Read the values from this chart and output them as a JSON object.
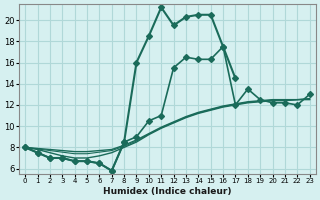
{
  "xlabel": "Humidex (Indice chaleur)",
  "ylabel": "",
  "bg_color": "#d6f0f0",
  "grid_color": "#b0d8d8",
  "line_color": "#1a6b5a",
  "xlim": [
    -0.5,
    23.5
  ],
  "ylim": [
    5.5,
    21.5
  ],
  "xticks": [
    0,
    1,
    2,
    3,
    4,
    5,
    6,
    7,
    8,
    9,
    10,
    11,
    12,
    13,
    14,
    15,
    16,
    17,
    18,
    19,
    20,
    21,
    22,
    23
  ],
  "yticks": [
    6,
    8,
    10,
    12,
    14,
    16,
    18,
    20
  ],
  "flat_series": [
    {
      "x": [
        0,
        1,
        2,
        3,
        4,
        5,
        6,
        7,
        8,
        9,
        10,
        11,
        12,
        13,
        14,
        15,
        16,
        17,
        18,
        19,
        20,
        21,
        22,
        23
      ],
      "y": [
        8.0,
        7.8,
        7.5,
        7.2,
        7.0,
        7.0,
        7.2,
        7.5,
        8.0,
        8.5,
        9.2,
        9.8,
        10.3,
        10.8,
        11.2,
        11.5,
        11.8,
        12.0,
        12.2,
        12.3,
        12.4,
        12.4,
        12.5,
        12.5
      ],
      "marker": false,
      "linewidth": 1.0
    },
    {
      "x": [
        0,
        1,
        2,
        3,
        4,
        5,
        6,
        7,
        8,
        9,
        10,
        11,
        12,
        13,
        14,
        15,
        16,
        17,
        18,
        19,
        20,
        21,
        22,
        23
      ],
      "y": [
        8.0,
        7.9,
        7.8,
        7.7,
        7.6,
        7.6,
        7.7,
        7.8,
        8.2,
        8.7,
        9.3,
        9.9,
        10.4,
        10.9,
        11.3,
        11.6,
        11.9,
        12.1,
        12.3,
        12.4,
        12.5,
        12.5,
        12.5,
        12.6
      ],
      "marker": false,
      "linewidth": 1.0
    },
    {
      "x": [
        0,
        1,
        2,
        3,
        4,
        5,
        6,
        7,
        8,
        9,
        10,
        11,
        12,
        13,
        14,
        15,
        16,
        17,
        18,
        19,
        20,
        21,
        22,
        23
      ],
      "y": [
        8.0,
        7.85,
        7.7,
        7.55,
        7.4,
        7.4,
        7.55,
        7.7,
        8.1,
        8.6,
        9.25,
        9.85,
        10.35,
        10.85,
        11.25,
        11.55,
        11.85,
        12.05,
        12.25,
        12.35,
        12.45,
        12.45,
        12.5,
        12.55
      ],
      "marker": false,
      "linewidth": 0.8
    },
    {
      "x": [
        0,
        1,
        2,
        3,
        4,
        5,
        6,
        7,
        8,
        9,
        10,
        11,
        12,
        13,
        14,
        15,
        16,
        17,
        18,
        19,
        20,
        21,
        22,
        23
      ],
      "y": [
        8.0,
        7.5,
        7.0,
        7.0,
        6.7,
        6.7,
        6.5,
        5.8,
        8.5,
        9.0,
        10.5,
        11.0,
        15.5,
        16.5,
        16.3,
        16.3,
        17.5,
        12.0,
        13.5,
        12.5,
        12.2,
        12.2,
        12.0,
        13.0
      ],
      "marker": true,
      "linewidth": 1.2
    }
  ],
  "main_series_x": [
    0,
    1,
    2,
    3,
    4,
    5,
    6,
    7,
    8,
    9,
    10,
    11,
    12,
    13,
    14,
    15,
    16,
    17
  ],
  "main_series_y": [
    8.0,
    7.5,
    7.0,
    7.0,
    6.7,
    6.7,
    6.5,
    5.8,
    8.5,
    16.0,
    18.5,
    21.2,
    19.5,
    20.3,
    20.5,
    20.5,
    17.5,
    14.5
  ],
  "main_linewidth": 1.5,
  "marker_symbol": "D",
  "markersize": 3
}
